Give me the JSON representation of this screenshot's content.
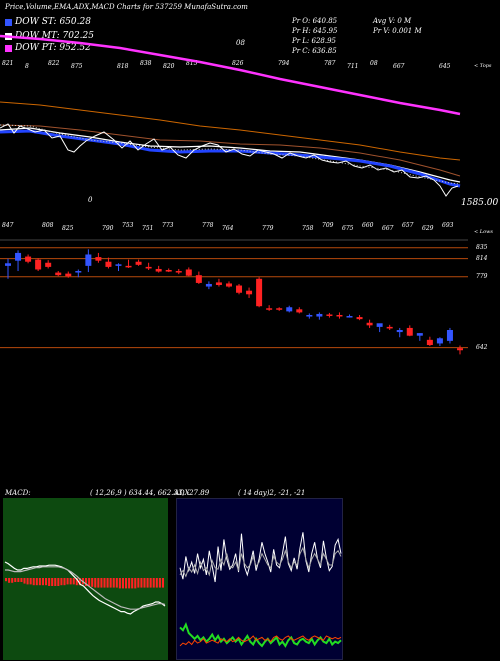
{
  "header": {
    "title": "Price,Volume,EMA,ADX,MACD Charts for 537259 MunafaSutra.com",
    "dow_st": "DOW ST: 650.28",
    "dow_mt": "DOW MT: 702.25",
    "dow_pt": "DOW PT: 952.52",
    "pr_o": "Pr   O: 640.85",
    "pr_h": "Pr   H: 645.95",
    "pr_l": "Pr   L: 628.95",
    "pr_c": "Pr   C: 636.85",
    "avg_v": "Avg V: 0  M",
    "pr_v": "Pr   V: 0.001 M",
    "top_right": "< Tops",
    "bottom_right": "< Lows",
    "ema_value": "1585.00",
    "top_mid_label": "08",
    "low_mid_label": "0"
  },
  "tops_labels": [
    "821",
    "8",
    "822",
    "875",
    "",
    "818",
    "838",
    "820",
    "815",
    "",
    "826",
    "",
    "794",
    "",
    "787",
    "711",
    "08",
    "667",
    "",
    "645"
  ],
  "lows_labels": [
    "847",
    "",
    "808",
    "825",
    "",
    "790",
    "753",
    "751",
    "773",
    "",
    "778",
    "764",
    "",
    "779",
    "",
    "758",
    "709",
    "675",
    "660",
    "667",
    "657",
    "629",
    "693"
  ],
  "colors": {
    "up": "#3355ff",
    "down": "#ff2222",
    "magenta": "#ff33ff",
    "orange": "#cc6600",
    "grid": "#b84a0c"
  },
  "chart_data": [
    {
      "type": "candlestick",
      "title": "Price",
      "price_axis_ticks": [
        "835",
        "814",
        "779",
        "642"
      ],
      "price_levels": [
        835,
        814,
        779,
        642
      ],
      "ylim": [
        560,
        850
      ],
      "candles": [
        {
          "o": 800,
          "h": 814,
          "l": 775,
          "c": 805
        },
        {
          "o": 810,
          "h": 830,
          "l": 790,
          "c": 825
        },
        {
          "o": 818,
          "h": 822,
          "l": 805,
          "c": 808
        },
        {
          "o": 812,
          "h": 815,
          "l": 790,
          "c": 793
        },
        {
          "o": 806,
          "h": 811,
          "l": 795,
          "c": 798
        },
        {
          "o": 787,
          "h": 790,
          "l": 780,
          "c": 782
        },
        {
          "o": 785,
          "h": 789,
          "l": 777,
          "c": 780
        },
        {
          "o": 788,
          "h": 793,
          "l": 778,
          "c": 790
        },
        {
          "o": 800,
          "h": 832,
          "l": 788,
          "c": 822
        },
        {
          "o": 817,
          "h": 825,
          "l": 806,
          "c": 810
        },
        {
          "o": 808,
          "h": 816,
          "l": 795,
          "c": 798
        },
        {
          "o": 800,
          "h": 805,
          "l": 790,
          "c": 803
        },
        {
          "o": 800,
          "h": 812,
          "l": 796,
          "c": 798
        },
        {
          "o": 808,
          "h": 812,
          "l": 800,
          "c": 802
        },
        {
          "o": 798,
          "h": 806,
          "l": 792,
          "c": 795
        },
        {
          "o": 794,
          "h": 800,
          "l": 787,
          "c": 789
        },
        {
          "o": 792,
          "h": 795,
          "l": 788,
          "c": 789
        },
        {
          "o": 790,
          "h": 794,
          "l": 784,
          "c": 788
        },
        {
          "o": 793,
          "h": 797,
          "l": 780,
          "c": 781
        },
        {
          "o": 782,
          "h": 789,
          "l": 765,
          "c": 767
        },
        {
          "o": 760,
          "h": 770,
          "l": 755,
          "c": 765
        },
        {
          "o": 768,
          "h": 775,
          "l": 760,
          "c": 763
        },
        {
          "o": 766,
          "h": 770,
          "l": 758,
          "c": 760
        },
        {
          "o": 762,
          "h": 765,
          "l": 745,
          "c": 748
        },
        {
          "o": 752,
          "h": 758,
          "l": 738,
          "c": 745
        },
        {
          "o": 775,
          "h": 778,
          "l": 720,
          "c": 722
        },
        {
          "o": 718,
          "h": 724,
          "l": 713,
          "c": 716
        },
        {
          "o": 718,
          "h": 720,
          "l": 713,
          "c": 716
        },
        {
          "o": 712,
          "h": 723,
          "l": 710,
          "c": 720
        },
        {
          "o": 716,
          "h": 720,
          "l": 708,
          "c": 710
        },
        {
          "o": 702,
          "h": 708,
          "l": 698,
          "c": 705
        },
        {
          "o": 702,
          "h": 710,
          "l": 696,
          "c": 707
        },
        {
          "o": 706,
          "h": 709,
          "l": 700,
          "c": 704
        },
        {
          "o": 705,
          "h": 710,
          "l": 698,
          "c": 704
        },
        {
          "o": 702,
          "h": 706,
          "l": 700,
          "c": 703
        },
        {
          "o": 701,
          "h": 705,
          "l": 695,
          "c": 697
        },
        {
          "o": 690,
          "h": 696,
          "l": 680,
          "c": 685
        },
        {
          "o": 682,
          "h": 688,
          "l": 672,
          "c": 689
        },
        {
          "o": 682,
          "h": 686,
          "l": 676,
          "c": 679
        },
        {
          "o": 672,
          "h": 680,
          "l": 662,
          "c": 676
        },
        {
          "o": 680,
          "h": 685,
          "l": 664,
          "c": 665
        },
        {
          "o": 665,
          "h": 670,
          "l": 655,
          "c": 670
        },
        {
          "o": 657,
          "h": 663,
          "l": 645,
          "c": 647
        },
        {
          "o": 650,
          "h": 662,
          "l": 645,
          "c": 660
        },
        {
          "o": 655,
          "h": 680,
          "l": 650,
          "c": 676
        },
        {
          "o": 640.85,
          "h": 645.95,
          "l": 628.95,
          "c": 636.85
        }
      ]
    },
    {
      "type": "line",
      "title": "MACD",
      "label": "MACD:",
      "params": "( 12,26,9 ) 634.44, 662.33, -27.89",
      "series": [
        {
          "values": [
            0.2,
            0.18,
            0.15,
            0.12,
            0.1,
            0.1,
            0.12,
            0.12,
            0.13,
            0.14,
            0.14,
            0.15,
            0.15,
            0.15,
            0.16,
            0.16,
            0.16,
            0.15,
            0.14,
            0.12,
            0.1,
            0.06,
            0.02,
            -0.02,
            -0.08,
            -0.1,
            -0.14,
            -0.18,
            -0.22,
            -0.25,
            -0.28,
            -0.3,
            -0.32,
            -0.34,
            -0.36,
            -0.38,
            -0.4,
            -0.42,
            -0.42,
            -0.44,
            -0.45,
            -0.42,
            -0.4,
            -0.38,
            -0.35,
            -0.34,
            -0.33,
            -0.32,
            -0.3,
            -0.3,
            -0.32,
            -0.35
          ]
        },
        {
          "values": [
            0.1,
            0.1,
            0.09,
            0.08,
            0.08,
            0.08,
            0.09,
            0.1,
            0.11,
            0.12,
            0.13,
            0.13,
            0.14,
            0.14,
            0.14,
            0.14,
            0.14,
            0.14,
            0.13,
            0.12,
            0.1,
            0.08,
            0.05,
            0.02,
            -0.02,
            -0.05,
            -0.08,
            -0.11,
            -0.14,
            -0.17,
            -0.2,
            -0.23,
            -0.26,
            -0.28,
            -0.3,
            -0.32,
            -0.34,
            -0.36,
            -0.37,
            -0.38,
            -0.39,
            -0.39,
            -0.39,
            -0.38,
            -0.37,
            -0.36,
            -0.35,
            -0.34,
            -0.33,
            -0.32,
            -0.32,
            -0.33
          ]
        }
      ],
      "histogram": [
        0.04,
        0.06,
        0.06,
        0.05,
        0.05,
        0.05,
        0.07,
        0.08,
        0.08,
        0.09,
        0.09,
        0.09,
        0.09,
        0.09,
        0.1,
        0.1,
        0.1,
        0.1,
        0.09,
        0.09,
        0.08,
        0.08,
        0.08,
        0.09,
        0.09,
        0.08,
        0.1,
        0.1,
        0.11,
        0.12,
        0.12,
        0.12,
        0.12,
        0.12,
        0.12,
        0.12,
        0.12,
        0.13,
        0.13,
        0.13,
        0.13,
        0.13,
        0.13,
        0.12,
        0.12,
        0.12,
        0.12,
        0.12,
        0.12,
        0.12,
        0.12,
        0.12
      ]
    },
    {
      "type": "line",
      "title": "ADX",
      "label": "ADX",
      "params": "( 14  day)2,  -21,  -21",
      "series": [
        {
          "color": "#ffffff",
          "values": [
            60,
            52,
            68,
            58,
            64,
            56,
            70,
            60,
            66,
            55,
            72,
            61,
            50,
            75,
            58,
            80,
            66,
            59,
            62,
            70,
            57,
            84,
            61,
            55,
            63,
            72,
            58,
            66,
            78,
            70,
            64,
            57,
            73,
            62,
            60,
            70,
            82,
            63,
            58,
            67,
            59,
            74,
            85,
            65,
            57,
            70,
            78,
            66,
            60,
            79,
            67,
            58,
            61,
            76,
            80,
            70
          ]
        },
        {
          "color": "#aaaaaa",
          "values": [
            55,
            58,
            54,
            60,
            57,
            62,
            56,
            64,
            58,
            60,
            55,
            65,
            60,
            59,
            66,
            62,
            70,
            61,
            60,
            64,
            58,
            70,
            63,
            60,
            62,
            68,
            61,
            64,
            70,
            66,
            62,
            60,
            68,
            64,
            62,
            66,
            72,
            64,
            60,
            64,
            62,
            70,
            74,
            66,
            60,
            66,
            70,
            66,
            62,
            70,
            66,
            62,
            62,
            70,
            72,
            68
          ]
        },
        {
          "color": "#22dd22",
          "values": [
            18,
            16,
            20,
            14,
            12,
            10,
            12,
            9,
            11,
            8,
            10,
            13,
            9,
            12,
            8,
            10,
            7,
            9,
            11,
            8,
            10,
            6,
            9,
            12,
            8,
            6,
            10,
            7,
            5,
            8,
            10,
            7,
            9,
            11,
            6,
            8,
            5,
            9,
            11,
            7,
            6,
            9,
            10,
            8,
            7,
            10,
            6,
            9,
            11,
            8,
            7,
            10,
            6,
            8,
            7,
            9
          ]
        },
        {
          "color": "#ff4400",
          "values": [
            5,
            7,
            6,
            8,
            6,
            9,
            7,
            8,
            10,
            7,
            8,
            9,
            8,
            7,
            10,
            9,
            8,
            10,
            8,
            9,
            11,
            9,
            8,
            9,
            10,
            12,
            9,
            10,
            11,
            9,
            10,
            8,
            11,
            12,
            10,
            9,
            11,
            12,
            10,
            9,
            10,
            11,
            12,
            10,
            9,
            11,
            12,
            11,
            10,
            9,
            12,
            11,
            10,
            11,
            10,
            11
          ]
        }
      ]
    }
  ]
}
